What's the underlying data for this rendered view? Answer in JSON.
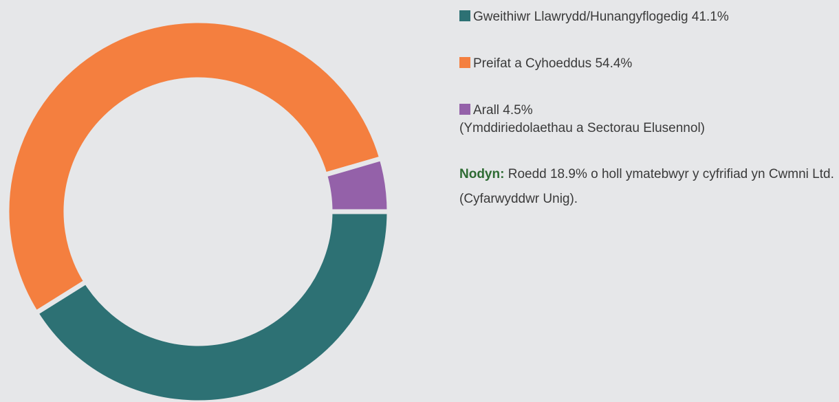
{
  "chart_data": {
    "type": "pie",
    "donut": true,
    "categories": [
      "Gweithiwr Llawrydd/Hunangyflogedig",
      "Preifat a Cyhoeddus",
      "Arall"
    ],
    "values": [
      41.1,
      54.4,
      4.5
    ],
    "value_labels": [
      "41.1%",
      "54.4%",
      "4.5%"
    ],
    "colors": [
      "#2d7174",
      "#f47f3f",
      "#9461a9"
    ],
    "annotations": [
      null,
      null,
      "(Ymddiriedolaethau a Sectorau Elusennol)"
    ],
    "note": {
      "label": "Nodyn:",
      "text": "Roedd 18.9% o holl ymatebwyr y cyfrifiad yn Cwmni Ltd. (Cyfarwyddwr Unig)."
    }
  }
}
